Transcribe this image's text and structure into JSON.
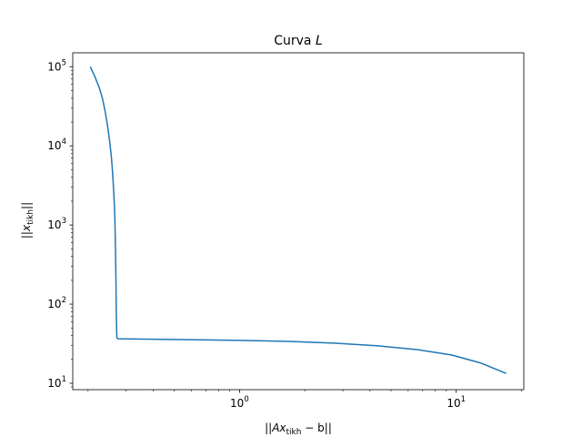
{
  "chart_data": {
    "type": "line",
    "title": {
      "prefix": "Curva ",
      "italic": "L"
    },
    "xlabel": {
      "pre": "||",
      "main": "Ax",
      "sub": "tikh",
      "post": " − b||"
    },
    "ylabel": {
      "pre": "||",
      "main": "x",
      "sub": "tikh",
      "post": "||"
    },
    "xscale": "log",
    "yscale": "log",
    "xlim": [
      0.17,
      20.5
    ],
    "ylim": [
      8.3,
      150000
    ],
    "grid": false,
    "x_ticks": [
      {
        "value": 1,
        "base": "10",
        "exp": "0"
      },
      {
        "value": 10,
        "base": "10",
        "exp": "1"
      }
    ],
    "y_ticks": [
      {
        "value": 10,
        "base": "10",
        "exp": "1"
      },
      {
        "value": 100,
        "base": "10",
        "exp": "2"
      },
      {
        "value": 1000,
        "base": "10",
        "exp": "3"
      },
      {
        "value": 10000,
        "base": "10",
        "exp": "4"
      },
      {
        "value": 100000,
        "base": "10",
        "exp": "5"
      }
    ],
    "series": [
      {
        "color": "#1f77b4",
        "x": [
          0.205,
          0.215,
          0.225,
          0.233,
          0.24,
          0.246,
          0.251,
          0.256,
          0.259,
          0.262,
          0.264,
          0.266,
          0.267,
          0.268,
          0.269,
          0.2695,
          0.27,
          0.2705,
          0.2712,
          0.272,
          0.275,
          0.3,
          0.4,
          0.6,
          1.0,
          1.7,
          2.7,
          4.3,
          6.6,
          9.5,
          13.0,
          17.0
        ],
        "y": [
          100000,
          75000,
          55000,
          40000,
          27000,
          18000,
          12000,
          7500,
          5000,
          3000,
          2000,
          1200,
          700,
          400,
          200,
          120,
          80,
          60,
          45,
          37,
          36.5,
          36.3,
          36.0,
          35.5,
          34.8,
          33.8,
          32.2,
          29.8,
          26.6,
          22.8,
          18.0,
          13.3
        ]
      }
    ]
  }
}
